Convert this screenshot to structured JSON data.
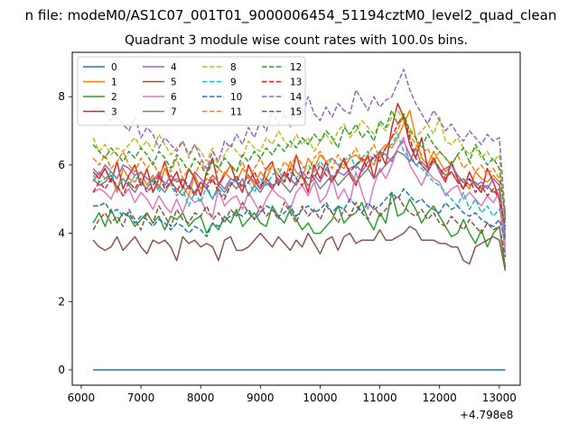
{
  "chart_data": {
    "type": "line",
    "suptitle": "n file: modeM0/AS1C07_001T01_9000006454_51194cztM0_level2_quad_clean",
    "title": "Quadrant 3 module wise count rates with 100.0s bins.",
    "xlabel": "",
    "ylabel": "",
    "x_offset_text": "+4.798e8",
    "xlim": [
      5850,
      13350
    ],
    "ylim": [
      -0.45,
      9.3
    ],
    "xticks": [
      6000,
      7000,
      8000,
      9000,
      10000,
      11000,
      12000,
      13000
    ],
    "yticks": [
      0,
      2,
      4,
      6,
      8
    ],
    "grid": false,
    "legend": {
      "placement": "top-left",
      "ncol": 4
    },
    "x_start": 6200,
    "x_step": 100,
    "series": [
      {
        "name": "0",
        "color": "#1f77b4",
        "dash": "solid",
        "values": [
          0,
          0,
          0,
          0,
          0,
          0,
          0,
          0,
          0,
          0,
          0,
          0,
          0,
          0,
          0,
          0,
          0,
          0,
          0,
          0,
          0,
          0,
          0,
          0,
          0,
          0,
          0,
          0,
          0,
          0,
          0,
          0,
          0,
          0,
          0,
          0,
          0,
          0,
          0,
          0,
          0,
          0,
          0,
          0,
          0,
          0,
          0,
          0,
          0,
          0,
          0,
          0,
          0,
          0,
          0,
          0,
          0,
          0,
          0,
          0,
          0,
          0,
          0,
          0,
          0,
          0,
          0,
          0,
          0,
          0
        ]
      },
      {
        "name": "1",
        "color": "#ff7f0e",
        "dash": "solid",
        "values": [
          5.5,
          5.8,
          5.6,
          5.7,
          5.2,
          5.9,
          5.6,
          5.5,
          5.8,
          5.4,
          5.7,
          5.3,
          5.9,
          5.5,
          5.6,
          5.4,
          5.1,
          5.7,
          5.3,
          5.6,
          5.5,
          5.4,
          5.8,
          5.6,
          5.5,
          5.9,
          5.7,
          5.4,
          5.8,
          5.6,
          6.0,
          5.7,
          5.5,
          6.1,
          5.8,
          5.6,
          6.2,
          5.9,
          6.3,
          6.1,
          6.2,
          6.0,
          5.9,
          6.2,
          6.3,
          6.1,
          6.2,
          6.0,
          6.4,
          6.6,
          6.5,
          6.8,
          7.2,
          7.6,
          6.8,
          6.2,
          6.0,
          6.4,
          6.1,
          5.8,
          6.0,
          5.6,
          5.5,
          5.3,
          5.8,
          5.6,
          5.5,
          5.7,
          5.5,
          3.6
        ]
      },
      {
        "name": "2",
        "color": "#2ca02c",
        "dash": "solid",
        "values": [
          4.3,
          4.6,
          4.2,
          4.7,
          4.3,
          4.6,
          4.5,
          4.2,
          4.4,
          4.6,
          4.3,
          4.5,
          4.1,
          4.5,
          4.4,
          4.6,
          4.2,
          4.4,
          4.5,
          4.0,
          4.3,
          4.1,
          4.5,
          4.3,
          4.7,
          4.2,
          4.4,
          4.6,
          4.3,
          4.2,
          4.8,
          4.5,
          4.3,
          4.7,
          4.4,
          4.1,
          4.3,
          4.0,
          4.0,
          4.2,
          4.4,
          4.8,
          4.3,
          4.5,
          4.6,
          4.9,
          4.4,
          4.1,
          4.6,
          4.3,
          5.2,
          4.5,
          4.6,
          5.0,
          4.7,
          4.3,
          4.6,
          4.8,
          4.5,
          4.2,
          3.9,
          4.0,
          4.4,
          4.0,
          3.7,
          4.1,
          3.6,
          4.0,
          4.2,
          3.0
        ]
      },
      {
        "name": "3",
        "color": "#d62728",
        "dash": "solid",
        "values": [
          5.8,
          5.6,
          5.9,
          5.5,
          6.1,
          5.3,
          5.7,
          6.0,
          5.4,
          5.9,
          5.2,
          5.6,
          6.1,
          5.5,
          5.8,
          5.3,
          5.9,
          5.6,
          5.1,
          5.8,
          6.2,
          5.4,
          5.7,
          6.0,
          5.5,
          5.2,
          6.0,
          5.6,
          5.3,
          5.9,
          6.1,
          5.4,
          5.8,
          5.5,
          6.3,
          5.7,
          5.2,
          6.0,
          5.6,
          6.1,
          5.5,
          5.8,
          6.2,
          5.7,
          5.4,
          5.9,
          6.3,
          5.6,
          6.4,
          6.0,
          7.1,
          7.8,
          7.4,
          6.6,
          6.2,
          6.8,
          5.9,
          6.2,
          5.8,
          5.5,
          6.1,
          5.6,
          5.3,
          5.8,
          5.4,
          5.2,
          5.9,
          5.5,
          5.0,
          3.4
        ]
      },
      {
        "name": "4",
        "color": "#9467bd",
        "dash": "solid",
        "values": [
          5.9,
          5.7,
          6.0,
          5.8,
          5.6,
          6.0,
          5.9,
          5.7,
          5.8,
          5.6,
          5.5,
          5.8,
          5.4,
          5.7,
          5.5,
          5.6,
          5.3,
          5.8,
          5.6,
          5.4,
          5.7,
          5.5,
          5.3,
          5.6,
          5.5,
          5.4,
          5.7,
          5.5,
          5.3,
          5.6,
          5.4,
          5.5,
          5.7,
          5.6,
          5.4,
          5.8,
          5.6,
          5.7,
          5.5,
          5.9,
          5.6,
          5.8,
          5.7,
          5.9,
          6.0,
          5.8,
          6.1,
          6.2,
          6.4,
          6.3,
          6.1,
          6.5,
          6.7,
          6.3,
          6.0,
          6.1,
          5.9,
          6.2,
          5.8,
          5.9,
          6.0,
          5.7,
          5.5,
          5.6,
          5.4,
          5.5,
          5.3,
          5.6,
          5.4,
          3.9
        ]
      },
      {
        "name": "5",
        "color": "#8c564b",
        "dash": "solid",
        "values": [
          3.8,
          3.6,
          3.5,
          3.6,
          3.9,
          3.5,
          3.7,
          3.9,
          3.6,
          3.4,
          3.8,
          3.7,
          3.8,
          3.6,
          3.2,
          3.9,
          3.7,
          3.8,
          3.6,
          3.7,
          3.6,
          3.2,
          3.8,
          3.9,
          3.5,
          3.5,
          3.6,
          3.8,
          4.0,
          3.8,
          3.6,
          3.9,
          3.7,
          3.5,
          3.8,
          3.6,
          4.0,
          3.7,
          3.4,
          3.8,
          3.9,
          3.5,
          3.9,
          4.0,
          3.7,
          3.8,
          3.8,
          3.8,
          4.1,
          3.8,
          3.8,
          3.9,
          4.0,
          4.2,
          4.1,
          3.8,
          3.8,
          3.8,
          3.7,
          3.7,
          3.6,
          3.6,
          3.2,
          3.1,
          3.6,
          3.7,
          3.8,
          3.9,
          3.8,
          2.9
        ]
      },
      {
        "name": "6",
        "color": "#e377c2",
        "dash": "solid",
        "values": [
          5.2,
          5.3,
          5.2,
          5.0,
          5.4,
          5.1,
          5.3,
          4.9,
          5.2,
          5.0,
          4.7,
          5.1,
          4.8,
          4.6,
          5.0,
          4.6,
          5.1,
          4.9,
          5.0,
          4.6,
          4.5,
          5.3,
          4.8,
          5.0,
          5.1,
          4.7,
          5.2,
          4.9,
          4.6,
          5.0,
          5.3,
          5.1,
          5.0,
          4.7,
          5.2,
          5.4,
          5.1,
          5.5,
          4.9,
          5.1,
          5.6,
          5.0,
          5.3,
          4.9,
          5.8,
          5.2,
          4.7,
          5.4,
          5.9,
          5.6,
          6.0,
          6.5,
          6.8,
          6.0,
          5.7,
          5.4,
          5.8,
          5.6,
          5.5,
          5.1,
          5.3,
          5.4,
          5.0,
          5.2,
          5.0,
          4.8,
          5.1,
          4.9,
          5.2,
          3.4
        ]
      },
      {
        "name": "7",
        "color": "#7f7f7f",
        "dash": "solid",
        "values": [
          5.6,
          5.4,
          5.5,
          5.7,
          5.3,
          5.6,
          5.4,
          5.2,
          5.5,
          5.3,
          5.6,
          5.4,
          5.2,
          5.5,
          5.3,
          5.1,
          5.4,
          5.2,
          5.5,
          5.3,
          5.0,
          5.4,
          5.2,
          5.5,
          5.3,
          5.6,
          5.1,
          5.4,
          5.2,
          5.5,
          5.3,
          5.6,
          5.4,
          5.2,
          5.5,
          5.7,
          5.4,
          5.6,
          5.3,
          5.5,
          5.7,
          5.4,
          5.6,
          5.8,
          5.5,
          5.7,
          5.9,
          5.6,
          5.8,
          6.0,
          6.2,
          6.4,
          6.3,
          6.1,
          6.5,
          6.0,
          5.8,
          6.1,
          5.9,
          5.7,
          5.8,
          5.5,
          5.6,
          5.4,
          5.5,
          5.3,
          5.4,
          5.2,
          5.3,
          4.1
        ]
      },
      {
        "name": "8",
        "color": "#bcbd22",
        "dash": "dashed",
        "values": [
          6.8,
          6.4,
          6.6,
          6.3,
          6.5,
          6.4,
          6.6,
          6.8,
          6.5,
          6.7,
          6.4,
          6.9,
          6.6,
          6.3,
          6.5,
          6.7,
          6.2,
          6.6,
          6.4,
          6.1,
          6.5,
          5.9,
          6.3,
          6.6,
          6.4,
          6.2,
          6.7,
          6.5,
          6.4,
          6.8,
          6.6,
          7.0,
          6.7,
          6.5,
          6.9,
          6.6,
          6.8,
          6.4,
          6.7,
          6.9,
          6.6,
          7.0,
          7.2,
          6.8,
          7.0,
          7.3,
          7.1,
          6.9,
          7.2,
          7.0,
          7.4,
          7.6,
          7.3,
          7.1,
          6.8,
          7.0,
          7.2,
          6.9,
          7.4,
          6.7,
          6.6,
          6.8,
          6.5,
          6.3,
          6.5,
          6.2,
          6.4,
          6.1,
          6.3,
          4.3
        ]
      },
      {
        "name": "9",
        "color": "#17becf",
        "dash": "dashed",
        "values": [
          5.7,
          5.5,
          5.6,
          5.8,
          5.3,
          5.6,
          5.4,
          5.7,
          5.5,
          5.3,
          5.6,
          5.2,
          5.5,
          5.4,
          5.1,
          5.3,
          4.8,
          5.2,
          4.9,
          5.4,
          5.0,
          5.3,
          5.1,
          5.4,
          5.6,
          5.3,
          5.5,
          5.2,
          5.6,
          5.4,
          5.7,
          5.9,
          5.5,
          5.8,
          5.6,
          5.9,
          6.0,
          5.8,
          6.1,
          5.9,
          6.2,
          6.0,
          6.1,
          6.3,
          5.9,
          6.2,
          6.4,
          6.1,
          6.3,
          6.5,
          6.6,
          6.9,
          6.4,
          6.2,
          6.0,
          5.9,
          5.7,
          5.5,
          5.4,
          5.2,
          5.0,
          4.8,
          5.2,
          4.7,
          5.0,
          4.6,
          4.8,
          4.5,
          4.7,
          4.2
        ]
      },
      {
        "name": "10",
        "color": "#1f77b4",
        "dash": "dashed",
        "values": [
          4.8,
          4.8,
          4.9,
          4.6,
          4.7,
          4.5,
          4.6,
          4.3,
          4.5,
          4.4,
          4.2,
          4.4,
          4.3,
          4.1,
          4.3,
          4.2,
          4.0,
          4.2,
          4.1,
          3.9,
          4.3,
          4.2,
          4.4,
          4.5,
          4.6,
          4.5,
          4.7,
          4.4,
          4.6,
          4.8,
          4.7,
          4.5,
          4.6,
          4.8,
          4.5,
          4.7,
          4.8,
          4.6,
          4.7,
          4.9,
          4.6,
          4.8,
          4.7,
          5.0,
          4.8,
          4.6,
          4.9,
          4.7,
          4.8,
          5.0,
          5.2,
          5.0,
          5.3,
          5.1,
          4.9,
          5.0,
          4.8,
          4.7,
          4.6,
          4.9,
          4.7,
          4.8,
          4.6,
          4.5,
          4.6,
          4.4,
          4.3,
          4.2,
          4.4,
          3.8
        ]
      },
      {
        "name": "11",
        "color": "#ff7f0e",
        "dash": "dashed",
        "values": [
          6.2,
          6.0,
          6.3,
          5.9,
          6.1,
          6.4,
          6.0,
          5.8,
          6.2,
          5.9,
          6.1,
          5.7,
          6.0,
          5.8,
          6.2,
          5.6,
          5.9,
          5.7,
          6.1,
          5.8,
          5.5,
          5.9,
          5.7,
          6.0,
          5.8,
          6.1,
          5.6,
          5.9,
          6.2,
          5.8,
          6.0,
          5.7,
          6.1,
          5.9,
          6.3,
          6.0,
          5.8,
          6.2,
          6.4,
          6.1,
          5.9,
          6.3,
          6.0,
          6.2,
          6.5,
          6.1,
          6.3,
          6.6,
          6.2,
          6.5,
          6.8,
          7.0,
          7.5,
          6.9,
          6.6,
          6.3,
          6.5,
          6.1,
          6.4,
          6.2,
          6.0,
          6.3,
          5.9,
          6.1,
          5.8,
          6.0,
          5.7,
          5.9,
          5.6,
          4.6
        ]
      },
      {
        "name": "12",
        "color": "#2ca02c",
        "dash": "dashed",
        "values": [
          6.6,
          6.4,
          6.2,
          6.5,
          6.3,
          6.1,
          6.4,
          6.2,
          6.5,
          6.3,
          6.0,
          6.4,
          6.2,
          5.9,
          6.3,
          6.1,
          5.8,
          6.2,
          6.0,
          5.7,
          6.1,
          5.9,
          6.2,
          6.0,
          5.8,
          6.3,
          6.1,
          6.4,
          6.2,
          6.5,
          6.3,
          6.6,
          6.4,
          6.7,
          6.5,
          6.8,
          6.6,
          6.9,
          6.7,
          7.0,
          6.8,
          6.5,
          7.1,
          6.9,
          7.2,
          6.8,
          7.0,
          6.7,
          7.3,
          7.1,
          7.6,
          7.2,
          7.5,
          7.0,
          6.8,
          6.5,
          6.9,
          6.6,
          6.4,
          6.2,
          6.0,
          6.3,
          6.5,
          6.1,
          6.6,
          6.3,
          6.0,
          6.2,
          5.9,
          4.4
        ]
      },
      {
        "name": "13",
        "color": "#d62728",
        "dash": "dashed",
        "values": [
          5.2,
          5.5,
          5.3,
          5.6,
          5.4,
          5.1,
          5.5,
          5.3,
          5.6,
          5.2,
          5.4,
          5.7,
          5.3,
          5.5,
          5.2,
          5.6,
          5.4,
          5.1,
          5.5,
          5.3,
          5.6,
          5.2,
          5.0,
          5.4,
          5.7,
          5.3,
          5.5,
          5.8,
          5.4,
          5.6,
          5.3,
          5.7,
          5.5,
          5.9,
          5.6,
          5.4,
          5.8,
          5.6,
          6.0,
          5.7,
          5.5,
          5.9,
          6.1,
          5.8,
          6.0,
          6.2,
          5.9,
          6.3,
          6.1,
          6.5,
          6.8,
          7.2,
          7.4,
          6.8,
          6.2,
          6.0,
          5.8,
          6.2,
          5.9,
          5.6,
          5.8,
          5.5,
          5.3,
          5.6,
          5.2,
          5.4,
          5.1,
          5.3,
          5.0,
          4.2
        ]
      },
      {
        "name": "14",
        "color": "#9467bd",
        "dash": "dashed",
        "values": [
          7.6,
          7.7,
          7.5,
          7.3,
          7.4,
          7.2,
          7.0,
          7.4,
          6.8,
          7.1,
          6.9,
          6.5,
          6.8,
          6.6,
          6.4,
          6.7,
          6.3,
          6.6,
          6.2,
          5.9,
          6.4,
          6.1,
          6.7,
          6.5,
          6.9,
          6.6,
          7.1,
          6.8,
          7.3,
          7.0,
          7.6,
          7.2,
          7.5,
          7.1,
          7.8,
          7.4,
          8.0,
          7.5,
          7.3,
          7.7,
          7.4,
          7.8,
          7.6,
          7.5,
          8.2,
          7.9,
          7.6,
          8.0,
          7.7,
          7.9,
          8.0,
          8.4,
          8.8,
          8.2,
          7.8,
          7.5,
          7.2,
          7.6,
          7.3,
          7.0,
          7.2,
          6.9,
          6.7,
          7.0,
          6.8,
          6.6,
          6.9,
          6.7,
          6.8,
          4.5
        ]
      },
      {
        "name": "15",
        "color": "#8c564b",
        "dash": "dashed",
        "values": [
          4.1,
          4.4,
          4.6,
          4.3,
          4.5,
          4.2,
          4.7,
          4.4,
          4.1,
          4.6,
          4.3,
          4.8,
          4.5,
          4.2,
          4.7,
          4.4,
          4.3,
          4.6,
          4.5,
          4.8,
          4.4,
          4.6,
          4.3,
          4.7,
          4.5,
          4.9,
          4.6,
          4.4,
          4.8,
          4.5,
          4.7,
          4.4,
          4.9,
          4.6,
          4.3,
          4.8,
          4.5,
          4.7,
          4.4,
          4.8,
          4.6,
          4.3,
          4.7,
          4.5,
          4.9,
          4.6,
          4.4,
          4.8,
          4.5,
          4.7,
          4.9,
          5.1,
          4.8,
          4.6,
          4.5,
          4.7,
          4.4,
          4.6,
          4.3,
          4.2,
          4.5,
          4.3,
          4.1,
          4.4,
          4.2,
          4.0,
          4.3,
          4.1,
          4.2,
          3.3
        ]
      }
    ]
  }
}
